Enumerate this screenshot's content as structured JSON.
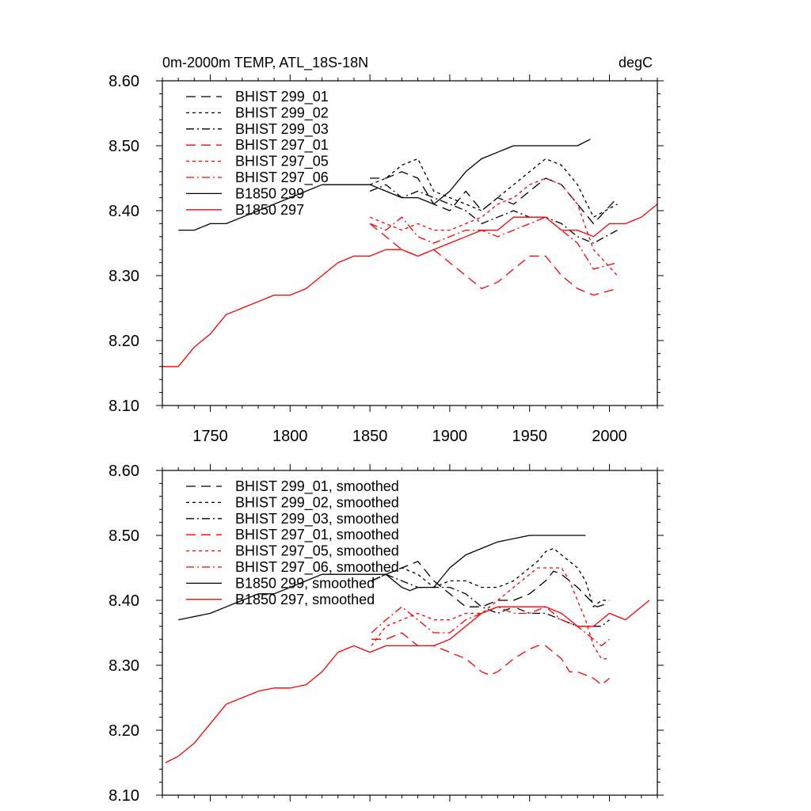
{
  "chart_data": [
    {
      "type": "line",
      "title": "0m-2000m TEMP, ATL_18S-18N",
      "units_label": "degC",
      "xlabel": "",
      "ylabel": "",
      "xlim": [
        1720,
        2030
      ],
      "ylim": [
        8.1,
        8.6
      ],
      "xticks": [
        1750,
        1800,
        1850,
        1900,
        1950,
        2000
      ],
      "xtick_labels": [
        "1750",
        "1800",
        "1850",
        "1900",
        "1950",
        "2000"
      ],
      "yticks": [
        8.1,
        8.2,
        8.3,
        8.4,
        8.5,
        8.6
      ],
      "ytick_labels": [
        "8.10",
        "8.20",
        "8.30",
        "8.40",
        "8.50",
        "8.60"
      ],
      "grid": false,
      "legend_position": "top-left",
      "series": [
        {
          "name": "BHIST 299_01",
          "color": "#000000",
          "dash": "long-dash",
          "x": [
            1850,
            1860,
            1870,
            1880,
            1890,
            1900,
            1910,
            1920,
            1930,
            1940,
            1950,
            1960,
            1970,
            1980,
            1990,
            2005
          ],
          "y": [
            8.45,
            8.45,
            8.46,
            8.45,
            8.41,
            8.4,
            8.43,
            8.4,
            8.42,
            8.41,
            8.43,
            8.45,
            8.44,
            8.41,
            8.38,
            8.42
          ]
        },
        {
          "name": "BHIST 299_02",
          "color": "#000000",
          "dash": "dash",
          "x": [
            1850,
            1860,
            1870,
            1880,
            1890,
            1900,
            1910,
            1920,
            1930,
            1940,
            1950,
            1960,
            1970,
            1980,
            1990,
            2005
          ],
          "y": [
            8.44,
            8.45,
            8.47,
            8.48,
            8.43,
            8.42,
            8.41,
            8.4,
            8.42,
            8.44,
            8.46,
            8.48,
            8.47,
            8.44,
            8.39,
            8.41
          ]
        },
        {
          "name": "BHIST 299_03",
          "color": "#000000",
          "dash": "dash-dot",
          "x": [
            1850,
            1860,
            1870,
            1880,
            1890,
            1900,
            1910,
            1920,
            1930,
            1940,
            1950,
            1960,
            1970,
            1980,
            1990,
            2005
          ],
          "y": [
            8.43,
            8.44,
            8.42,
            8.43,
            8.42,
            8.41,
            8.4,
            8.38,
            8.39,
            8.4,
            8.39,
            8.39,
            8.38,
            8.36,
            8.35,
            8.37
          ]
        },
        {
          "name": "BHIST 297_01",
          "color": "#ff0000",
          "dash": "long-dash",
          "x": [
            1850,
            1860,
            1870,
            1880,
            1890,
            1900,
            1910,
            1920,
            1930,
            1940,
            1950,
            1960,
            1970,
            1980,
            1990,
            2005
          ],
          "y": [
            8.38,
            8.36,
            8.34,
            8.33,
            8.34,
            8.32,
            8.3,
            8.28,
            8.29,
            8.31,
            8.33,
            8.33,
            8.3,
            8.28,
            8.27,
            8.28
          ]
        },
        {
          "name": "BHIST 297_05",
          "color": "#ff0000",
          "dash": "dash",
          "x": [
            1850,
            1860,
            1870,
            1880,
            1890,
            1900,
            1910,
            1920,
            1930,
            1940,
            1950,
            1960,
            1970,
            1980,
            1990,
            2005
          ],
          "y": [
            8.39,
            8.38,
            8.37,
            8.38,
            8.37,
            8.37,
            8.38,
            8.39,
            8.41,
            8.42,
            8.44,
            8.45,
            8.44,
            8.41,
            8.34,
            8.3
          ]
        },
        {
          "name": "BHIST 297_06",
          "color": "#ff0000",
          "dash": "dash-dot",
          "x": [
            1850,
            1860,
            1870,
            1880,
            1890,
            1900,
            1910,
            1920,
            1930,
            1940,
            1950,
            1960,
            1970,
            1980,
            1990,
            2005
          ],
          "y": [
            8.38,
            8.37,
            8.39,
            8.36,
            8.35,
            8.36,
            8.37,
            8.37,
            8.36,
            8.37,
            8.38,
            8.39,
            8.37,
            8.35,
            8.31,
            8.32
          ]
        },
        {
          "name": "B1850 299",
          "color": "#000000",
          "dash": "solid",
          "x": [
            1730,
            1740,
            1750,
            1760,
            1770,
            1780,
            1790,
            1800,
            1810,
            1820,
            1830,
            1840,
            1850,
            1860,
            1870,
            1880,
            1890,
            1900,
            1910,
            1920,
            1930,
            1940,
            1950,
            1960,
            1970,
            1980,
            1988
          ],
          "y": [
            8.37,
            8.37,
            8.38,
            8.38,
            8.39,
            8.4,
            8.41,
            8.42,
            8.43,
            8.44,
            8.44,
            8.44,
            8.44,
            8.43,
            8.42,
            8.42,
            8.41,
            8.43,
            8.46,
            8.48,
            8.49,
            8.5,
            8.5,
            8.5,
            8.5,
            8.5,
            8.51
          ]
        },
        {
          "name": "B1850 297",
          "color": "#ff0000",
          "dash": "solid",
          "x": [
            1720,
            1730,
            1740,
            1750,
            1760,
            1770,
            1780,
            1790,
            1800,
            1810,
            1820,
            1830,
            1840,
            1850,
            1860,
            1870,
            1880,
            1890,
            1900,
            1910,
            1920,
            1930,
            1940,
            1950,
            1960,
            1970,
            1980,
            1990,
            2000,
            2010,
            2020,
            2030
          ],
          "y": [
            8.16,
            8.16,
            8.19,
            8.21,
            8.24,
            8.25,
            8.26,
            8.27,
            8.27,
            8.28,
            8.3,
            8.32,
            8.33,
            8.33,
            8.34,
            8.34,
            8.33,
            8.34,
            8.35,
            8.36,
            8.37,
            8.37,
            8.39,
            8.39,
            8.39,
            8.37,
            8.37,
            8.36,
            8.38,
            8.38,
            8.39,
            8.41
          ]
        }
      ]
    },
    {
      "type": "line",
      "title": "",
      "xlabel": "",
      "ylabel": "",
      "xlim": [
        1720,
        2030
      ],
      "ylim": [
        8.1,
        8.6
      ],
      "yticks": [
        8.1,
        8.2,
        8.3,
        8.4,
        8.5,
        8.6
      ],
      "ytick_labels": [
        "8.10",
        "8.20",
        "8.30",
        "8.40",
        "8.50",
        "8.60"
      ],
      "grid": false,
      "legend_position": "top-left",
      "series": [
        {
          "name": "BHIST 299_01, smoothed",
          "color": "#000000",
          "dash": "long-dash",
          "x": [
            1851,
            1860,
            1870,
            1880,
            1890,
            1900,
            1910,
            1920,
            1930,
            1940,
            1950,
            1960,
            1965,
            1970,
            1980,
            1988,
            1992,
            1999
          ],
          "y": [
            8.43,
            8.44,
            8.45,
            8.46,
            8.43,
            8.41,
            8.39,
            8.39,
            8.4,
            8.4,
            8.41,
            8.43,
            8.445,
            8.44,
            8.42,
            8.4,
            8.39,
            8.395
          ]
        },
        {
          "name": "BHIST 299_02, smoothed",
          "color": "#000000",
          "dash": "dash",
          "x": [
            1851,
            1860,
            1870,
            1880,
            1890,
            1900,
            1910,
            1920,
            1930,
            1940,
            1950,
            1955,
            1960,
            1965,
            1970,
            1980,
            1985,
            1990,
            1995,
            2000
          ],
          "y": [
            8.43,
            8.44,
            8.45,
            8.44,
            8.42,
            8.43,
            8.43,
            8.42,
            8.42,
            8.43,
            8.45,
            8.46,
            8.475,
            8.48,
            8.47,
            8.45,
            8.43,
            8.39,
            8.4,
            8.4
          ]
        },
        {
          "name": "BHIST 299_03, smoothed",
          "color": "#000000",
          "dash": "dash-dot",
          "x": [
            1851,
            1860,
            1870,
            1880,
            1890,
            1900,
            1910,
            1920,
            1930,
            1940,
            1950,
            1960,
            1970,
            1980,
            1990,
            1995,
            2000
          ],
          "y": [
            8.43,
            8.44,
            8.43,
            8.42,
            8.42,
            8.42,
            8.41,
            8.39,
            8.38,
            8.39,
            8.38,
            8.38,
            8.37,
            8.36,
            8.36,
            8.36,
            8.37
          ]
        },
        {
          "name": "BHIST 297_01, smoothed",
          "color": "#ff0000",
          "dash": "long-dash",
          "x": [
            1851,
            1860,
            1870,
            1880,
            1890,
            1900,
            1910,
            1920,
            1925,
            1930,
            1940,
            1950,
            1955,
            1960,
            1970,
            1975,
            1980,
            1990,
            1995,
            2000
          ],
          "y": [
            8.34,
            8.34,
            8.35,
            8.33,
            8.33,
            8.32,
            8.31,
            8.29,
            8.285,
            8.29,
            8.31,
            8.325,
            8.33,
            8.33,
            8.31,
            8.29,
            8.29,
            8.28,
            8.27,
            8.28
          ]
        },
        {
          "name": "BHIST 297_05, smoothed",
          "color": "#ff0000",
          "dash": "dash",
          "x": [
            1851,
            1860,
            1870,
            1880,
            1890,
            1900,
            1910,
            1920,
            1930,
            1940,
            1950,
            1955,
            1960,
            1970,
            1975,
            1980,
            1985,
            1990,
            1995,
            2000
          ],
          "y": [
            8.33,
            8.36,
            8.37,
            8.38,
            8.37,
            8.37,
            8.38,
            8.38,
            8.4,
            8.42,
            8.44,
            8.45,
            8.45,
            8.45,
            8.43,
            8.4,
            8.37,
            8.33,
            8.31,
            8.31
          ]
        },
        {
          "name": "BHIST 297_06, smoothed",
          "color": "#ff0000",
          "dash": "dash-dot",
          "x": [
            1851,
            1860,
            1870,
            1880,
            1890,
            1900,
            1910,
            1920,
            1930,
            1940,
            1950,
            1960,
            1970,
            1980,
            1990,
            1995,
            2000
          ],
          "y": [
            8.35,
            8.37,
            8.39,
            8.37,
            8.35,
            8.35,
            8.37,
            8.38,
            8.39,
            8.38,
            8.38,
            8.39,
            8.37,
            8.36,
            8.34,
            8.33,
            8.34
          ]
        },
        {
          "name": "B1850 299, smoothed",
          "color": "#000000",
          "dash": "solid",
          "x": [
            1730,
            1740,
            1750,
            1760,
            1770,
            1780,
            1790,
            1800,
            1810,
            1820,
            1830,
            1840,
            1850,
            1860,
            1870,
            1875,
            1880,
            1890,
            1900,
            1910,
            1920,
            1930,
            1940,
            1950,
            1960,
            1970,
            1980,
            1985
          ],
          "y": [
            8.37,
            8.375,
            8.38,
            8.39,
            8.4,
            8.41,
            8.41,
            8.42,
            8.43,
            8.44,
            8.44,
            8.44,
            8.44,
            8.44,
            8.42,
            8.415,
            8.42,
            8.42,
            8.45,
            8.47,
            8.48,
            8.49,
            8.495,
            8.5,
            8.5,
            8.5,
            8.5,
            8.5
          ]
        },
        {
          "name": "B1850 297, smoothed",
          "color": "#ff0000",
          "dash": "solid",
          "x": [
            1722,
            1730,
            1740,
            1750,
            1760,
            1770,
            1780,
            1790,
            1800,
            1810,
            1820,
            1830,
            1840,
            1850,
            1860,
            1870,
            1880,
            1890,
            1900,
            1910,
            1920,
            1930,
            1940,
            1950,
            1960,
            1970,
            1980,
            1990,
            2000,
            2010,
            2015,
            2020,
            2025
          ],
          "y": [
            8.15,
            8.16,
            8.18,
            8.21,
            8.24,
            8.25,
            8.26,
            8.265,
            8.265,
            8.27,
            8.29,
            8.32,
            8.33,
            8.32,
            8.33,
            8.33,
            8.33,
            8.33,
            8.34,
            8.36,
            8.38,
            8.39,
            8.39,
            8.39,
            8.39,
            8.38,
            8.36,
            8.36,
            8.38,
            8.37,
            8.38,
            8.39,
            8.4
          ]
        }
      ]
    }
  ]
}
